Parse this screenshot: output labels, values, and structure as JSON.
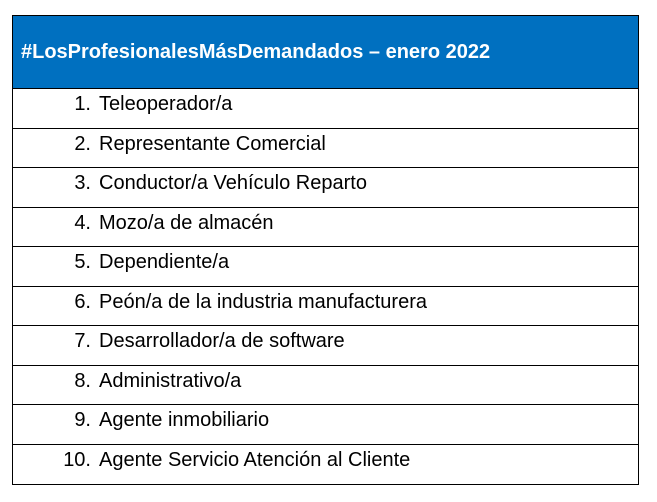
{
  "table": {
    "title": "#LosProfesionalesMásDemandados – enero 2022",
    "header_color": "#0070c0",
    "items": [
      {
        "num": "1.",
        "label": "Teleoperador/a"
      },
      {
        "num": "2.",
        "label": "Representante Comercial"
      },
      {
        "num": "3.",
        "label": "Conductor/a Vehículo Reparto"
      },
      {
        "num": "4.",
        "label": "Mozo/a de almacén"
      },
      {
        "num": "5.",
        "label": "Dependiente/a"
      },
      {
        "num": "6.",
        "label": "Peón/a de la industria manufacturera"
      },
      {
        "num": "7.",
        "label": "Desarrollador/a de software"
      },
      {
        "num": "8.",
        "label": "Administrativo/a"
      },
      {
        "num": "9.",
        "label": "Agente inmobiliario"
      },
      {
        "num": "10.",
        "label": "Agente Servicio Atención al Cliente"
      }
    ]
  }
}
